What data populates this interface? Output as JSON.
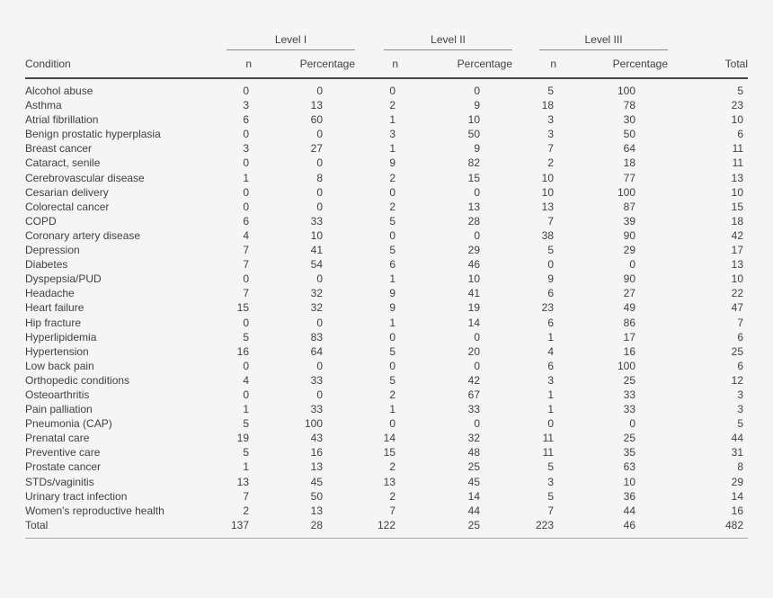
{
  "colors": {
    "background": "#f5f5f5",
    "text": "#3f3f3f",
    "header_rule": "#474747",
    "group_rule": "#8c8c8c",
    "bottom_rule": "#a8a8a8"
  },
  "table": {
    "groups": [
      {
        "label": "Level I"
      },
      {
        "label": "Level II"
      },
      {
        "label": "Level III"
      }
    ],
    "headers": {
      "condition": "Condition",
      "n": "n",
      "percentage": "Percentage",
      "total": "Total"
    },
    "rows": [
      {
        "condition": "Alcohol abuse",
        "l1_n": 0,
        "l1_pct": 0,
        "l2_n": 0,
        "l2_pct": 0,
        "l3_n": 5,
        "l3_pct": 100,
        "total": 5
      },
      {
        "condition": "Asthma",
        "l1_n": 3,
        "l1_pct": 13,
        "l2_n": 2,
        "l2_pct": 9,
        "l3_n": 18,
        "l3_pct": 78,
        "total": 23
      },
      {
        "condition": "Atrial fibrillation",
        "l1_n": 6,
        "l1_pct": 60,
        "l2_n": 1,
        "l2_pct": 10,
        "l3_n": 3,
        "l3_pct": 30,
        "total": 10
      },
      {
        "condition": "Benign prostatic hyperplasia",
        "l1_n": 0,
        "l1_pct": 0,
        "l2_n": 3,
        "l2_pct": 50,
        "l3_n": 3,
        "l3_pct": 50,
        "total": 6
      },
      {
        "condition": "Breast cancer",
        "l1_n": 3,
        "l1_pct": 27,
        "l2_n": 1,
        "l2_pct": 9,
        "l3_n": 7,
        "l3_pct": 64,
        "total": 11
      },
      {
        "condition": "Cataract, senile",
        "l1_n": 0,
        "l1_pct": 0,
        "l2_n": 9,
        "l2_pct": 82,
        "l3_n": 2,
        "l3_pct": 18,
        "total": 11
      },
      {
        "condition": "Cerebrovascular disease",
        "l1_n": 1,
        "l1_pct": 8,
        "l2_n": 2,
        "l2_pct": 15,
        "l3_n": 10,
        "l3_pct": 77,
        "total": 13
      },
      {
        "condition": "Cesarian delivery",
        "l1_n": 0,
        "l1_pct": 0,
        "l2_n": 0,
        "l2_pct": 0,
        "l3_n": 10,
        "l3_pct": 100,
        "total": 10
      },
      {
        "condition": "Colorectal cancer",
        "l1_n": 0,
        "l1_pct": 0,
        "l2_n": 2,
        "l2_pct": 13,
        "l3_n": 13,
        "l3_pct": 87,
        "total": 15
      },
      {
        "condition": "COPD",
        "l1_n": 6,
        "l1_pct": 33,
        "l2_n": 5,
        "l2_pct": 28,
        "l3_n": 7,
        "l3_pct": 39,
        "total": 18
      },
      {
        "condition": "Coronary artery disease",
        "l1_n": 4,
        "l1_pct": 10,
        "l2_n": 0,
        "l2_pct": 0,
        "l3_n": 38,
        "l3_pct": 90,
        "total": 42
      },
      {
        "condition": "Depression",
        "l1_n": 7,
        "l1_pct": 41,
        "l2_n": 5,
        "l2_pct": 29,
        "l3_n": 5,
        "l3_pct": 29,
        "total": 17
      },
      {
        "condition": "Diabetes",
        "l1_n": 7,
        "l1_pct": 54,
        "l2_n": 6,
        "l2_pct": 46,
        "l3_n": 0,
        "l3_pct": 0,
        "total": 13
      },
      {
        "condition": "Dyspepsia/PUD",
        "l1_n": 0,
        "l1_pct": 0,
        "l2_n": 1,
        "l2_pct": 10,
        "l3_n": 9,
        "l3_pct": 90,
        "total": 10
      },
      {
        "condition": "Headache",
        "l1_n": 7,
        "l1_pct": 32,
        "l2_n": 9,
        "l2_pct": 41,
        "l3_n": 6,
        "l3_pct": 27,
        "total": 22
      },
      {
        "condition": "Heart failure",
        "l1_n": 15,
        "l1_pct": 32,
        "l2_n": 9,
        "l2_pct": 19,
        "l3_n": 23,
        "l3_pct": 49,
        "total": 47
      },
      {
        "condition": "Hip fracture",
        "l1_n": 0,
        "l1_pct": 0,
        "l2_n": 1,
        "l2_pct": 14,
        "l3_n": 6,
        "l3_pct": 86,
        "total": 7
      },
      {
        "condition": "Hyperlipidemia",
        "l1_n": 5,
        "l1_pct": 83,
        "l2_n": 0,
        "l2_pct": 0,
        "l3_n": 1,
        "l3_pct": 17,
        "total": 6
      },
      {
        "condition": "Hypertension",
        "l1_n": 16,
        "l1_pct": 64,
        "l2_n": 5,
        "l2_pct": 20,
        "l3_n": 4,
        "l3_pct": 16,
        "total": 25
      },
      {
        "condition": "Low back pain",
        "l1_n": 0,
        "l1_pct": 0,
        "l2_n": 0,
        "l2_pct": 0,
        "l3_n": 6,
        "l3_pct": 100,
        "total": 6
      },
      {
        "condition": "Orthopedic conditions",
        "l1_n": 4,
        "l1_pct": 33,
        "l2_n": 5,
        "l2_pct": 42,
        "l3_n": 3,
        "l3_pct": 25,
        "total": 12
      },
      {
        "condition": "Osteoarthritis",
        "l1_n": 0,
        "l1_pct": 0,
        "l2_n": 2,
        "l2_pct": 67,
        "l3_n": 1,
        "l3_pct": 33,
        "total": 3
      },
      {
        "condition": "Pain palliation",
        "l1_n": 1,
        "l1_pct": 33,
        "l2_n": 1,
        "l2_pct": 33,
        "l3_n": 1,
        "l3_pct": 33,
        "total": 3
      },
      {
        "condition": "Pneumonia (CAP)",
        "l1_n": 5,
        "l1_pct": 100,
        "l2_n": 0,
        "l2_pct": 0,
        "l3_n": 0,
        "l3_pct": 0,
        "total": 5
      },
      {
        "condition": "Prenatal care",
        "l1_n": 19,
        "l1_pct": 43,
        "l2_n": 14,
        "l2_pct": 32,
        "l3_n": 11,
        "l3_pct": 25,
        "total": 44
      },
      {
        "condition": "Preventive care",
        "l1_n": 5,
        "l1_pct": 16,
        "l2_n": 15,
        "l2_pct": 48,
        "l3_n": 11,
        "l3_pct": 35,
        "total": 31
      },
      {
        "condition": "Prostate cancer",
        "l1_n": 1,
        "l1_pct": 13,
        "l2_n": 2,
        "l2_pct": 25,
        "l3_n": 5,
        "l3_pct": 63,
        "total": 8
      },
      {
        "condition": "STDs/vaginitis",
        "l1_n": 13,
        "l1_pct": 45,
        "l2_n": 13,
        "l2_pct": 45,
        "l3_n": 3,
        "l3_pct": 10,
        "total": 29
      },
      {
        "condition": "Urinary tract infection",
        "l1_n": 7,
        "l1_pct": 50,
        "l2_n": 2,
        "l2_pct": 14,
        "l3_n": 5,
        "l3_pct": 36,
        "total": 14
      },
      {
        "condition": "Women's reproductive health",
        "l1_n": 2,
        "l1_pct": 13,
        "l2_n": 7,
        "l2_pct": 44,
        "l3_n": 7,
        "l3_pct": 44,
        "total": 16
      }
    ],
    "total_row": {
      "condition": "Total",
      "l1_n": 137,
      "l1_pct": 28,
      "l2_n": 122,
      "l2_pct": 25,
      "l3_n": 223,
      "l3_pct": 46,
      "total": 482
    }
  }
}
